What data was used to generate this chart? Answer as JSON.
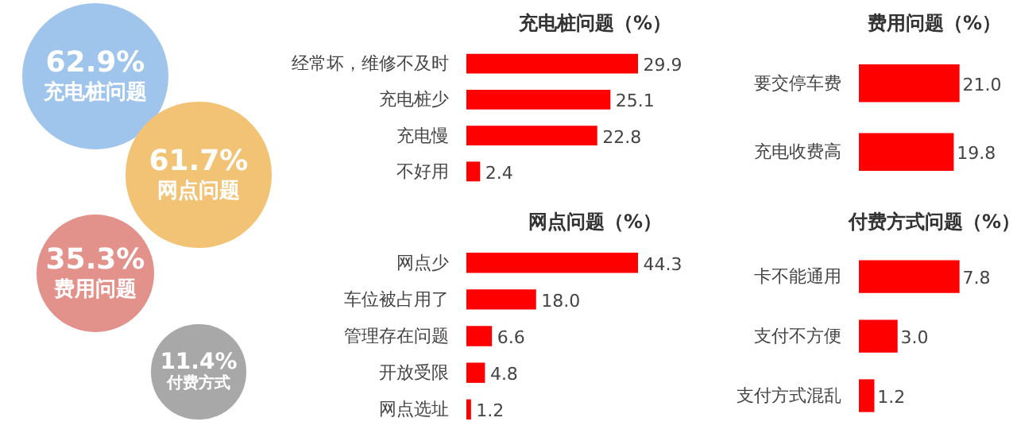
{
  "chart_data": [
    {
      "type": "other",
      "categories": [
        "充电桩问题",
        "网点问题",
        "费用问题",
        "付费方式"
      ],
      "values": [
        62.9,
        61.7,
        35.3,
        11.4
      ],
      "value_labels": [
        "62.9%",
        "61.7%",
        "35.3%",
        "11.4%"
      ],
      "colors": [
        "#9fc5ec",
        "#f2c374",
        "#e3918b",
        "#a8a8a8"
      ]
    },
    {
      "type": "bar",
      "orientation": "horizontal",
      "title": "充电桩问题（%）",
      "categories": [
        "经常坏，维修不及时",
        "充电桩少",
        "充电慢",
        "不好用"
      ],
      "values": [
        29.9,
        25.1,
        22.8,
        2.4
      ],
      "color": "#ff0000",
      "data_labels": true
    },
    {
      "type": "bar",
      "orientation": "horizontal",
      "title": "网点问题（%）",
      "categories": [
        "网点少",
        "车位被占用了",
        "管理存在问题",
        "开放受限",
        "网点选址"
      ],
      "values": [
        44.3,
        18.0,
        6.6,
        4.8,
        1.2
      ],
      "value_labels": [
        "44.3",
        "18.0",
        "6.6",
        "4.8",
        "1.2"
      ],
      "color": "#ff0000",
      "data_labels": true
    },
    {
      "type": "bar",
      "orientation": "horizontal",
      "title": "费用问题（%）",
      "categories": [
        "要交停车费",
        "充电收费高"
      ],
      "values": [
        21.0,
        19.8
      ],
      "value_labels": [
        "21.0",
        "19.8"
      ],
      "color": "#ff0000",
      "data_labels": true
    },
    {
      "type": "bar",
      "orientation": "horizontal",
      "title": "付费方式问题（%）",
      "categories": [
        "卡不能通用",
        "支付不方便",
        "支付方式混乱"
      ],
      "values": [
        7.8,
        3.0,
        1.2
      ],
      "value_labels": [
        "7.8",
        "3.0",
        "1.2"
      ],
      "color": "#ff0000",
      "data_labels": true
    }
  ]
}
